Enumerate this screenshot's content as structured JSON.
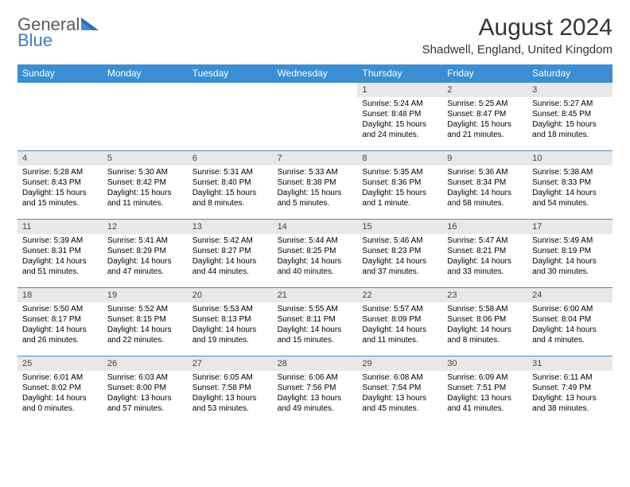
{
  "logo": {
    "main": "General",
    "accent": "Blue"
  },
  "title": "August 2024",
  "location": "Shadwell, England, United Kingdom",
  "colors": {
    "header_bg": "#3a8fd4",
    "header_text": "#ffffff",
    "daynum_bg": "#e8e8e8",
    "border": "#3a8fd4",
    "logo_gray": "#5a5a5a",
    "logo_blue": "#3a7fc4"
  },
  "day_labels": [
    "Sunday",
    "Monday",
    "Tuesday",
    "Wednesday",
    "Thursday",
    "Friday",
    "Saturday"
  ],
  "weeks": [
    [
      null,
      null,
      null,
      null,
      {
        "d": "1",
        "rise": "5:24 AM",
        "set": "8:48 PM",
        "dl": "15 hours and 24 minutes."
      },
      {
        "d": "2",
        "rise": "5:25 AM",
        "set": "8:47 PM",
        "dl": "15 hours and 21 minutes."
      },
      {
        "d": "3",
        "rise": "5:27 AM",
        "set": "8:45 PM",
        "dl": "15 hours and 18 minutes."
      }
    ],
    [
      {
        "d": "4",
        "rise": "5:28 AM",
        "set": "8:43 PM",
        "dl": "15 hours and 15 minutes."
      },
      {
        "d": "5",
        "rise": "5:30 AM",
        "set": "8:42 PM",
        "dl": "15 hours and 11 minutes."
      },
      {
        "d": "6",
        "rise": "5:31 AM",
        "set": "8:40 PM",
        "dl": "15 hours and 8 minutes."
      },
      {
        "d": "7",
        "rise": "5:33 AM",
        "set": "8:38 PM",
        "dl": "15 hours and 5 minutes."
      },
      {
        "d": "8",
        "rise": "5:35 AM",
        "set": "8:36 PM",
        "dl": "15 hours and 1 minute."
      },
      {
        "d": "9",
        "rise": "5:36 AM",
        "set": "8:34 PM",
        "dl": "14 hours and 58 minutes."
      },
      {
        "d": "10",
        "rise": "5:38 AM",
        "set": "8:33 PM",
        "dl": "14 hours and 54 minutes."
      }
    ],
    [
      {
        "d": "11",
        "rise": "5:39 AM",
        "set": "8:31 PM",
        "dl": "14 hours and 51 minutes."
      },
      {
        "d": "12",
        "rise": "5:41 AM",
        "set": "8:29 PM",
        "dl": "14 hours and 47 minutes."
      },
      {
        "d": "13",
        "rise": "5:42 AM",
        "set": "8:27 PM",
        "dl": "14 hours and 44 minutes."
      },
      {
        "d": "14",
        "rise": "5:44 AM",
        "set": "8:25 PM",
        "dl": "14 hours and 40 minutes."
      },
      {
        "d": "15",
        "rise": "5:46 AM",
        "set": "8:23 PM",
        "dl": "14 hours and 37 minutes."
      },
      {
        "d": "16",
        "rise": "5:47 AM",
        "set": "8:21 PM",
        "dl": "14 hours and 33 minutes."
      },
      {
        "d": "17",
        "rise": "5:49 AM",
        "set": "8:19 PM",
        "dl": "14 hours and 30 minutes."
      }
    ],
    [
      {
        "d": "18",
        "rise": "5:50 AM",
        "set": "8:17 PM",
        "dl": "14 hours and 26 minutes."
      },
      {
        "d": "19",
        "rise": "5:52 AM",
        "set": "8:15 PM",
        "dl": "14 hours and 22 minutes."
      },
      {
        "d": "20",
        "rise": "5:53 AM",
        "set": "8:13 PM",
        "dl": "14 hours and 19 minutes."
      },
      {
        "d": "21",
        "rise": "5:55 AM",
        "set": "8:11 PM",
        "dl": "14 hours and 15 minutes."
      },
      {
        "d": "22",
        "rise": "5:57 AM",
        "set": "8:09 PM",
        "dl": "14 hours and 11 minutes."
      },
      {
        "d": "23",
        "rise": "5:58 AM",
        "set": "8:06 PM",
        "dl": "14 hours and 8 minutes."
      },
      {
        "d": "24",
        "rise": "6:00 AM",
        "set": "8:04 PM",
        "dl": "14 hours and 4 minutes."
      }
    ],
    [
      {
        "d": "25",
        "rise": "6:01 AM",
        "set": "8:02 PM",
        "dl": "14 hours and 0 minutes."
      },
      {
        "d": "26",
        "rise": "6:03 AM",
        "set": "8:00 PM",
        "dl": "13 hours and 57 minutes."
      },
      {
        "d": "27",
        "rise": "6:05 AM",
        "set": "7:58 PM",
        "dl": "13 hours and 53 minutes."
      },
      {
        "d": "28",
        "rise": "6:06 AM",
        "set": "7:56 PM",
        "dl": "13 hours and 49 minutes."
      },
      {
        "d": "29",
        "rise": "6:08 AM",
        "set": "7:54 PM",
        "dl": "13 hours and 45 minutes."
      },
      {
        "d": "30",
        "rise": "6:09 AM",
        "set": "7:51 PM",
        "dl": "13 hours and 41 minutes."
      },
      {
        "d": "31",
        "rise": "6:11 AM",
        "set": "7:49 PM",
        "dl": "13 hours and 38 minutes."
      }
    ]
  ]
}
